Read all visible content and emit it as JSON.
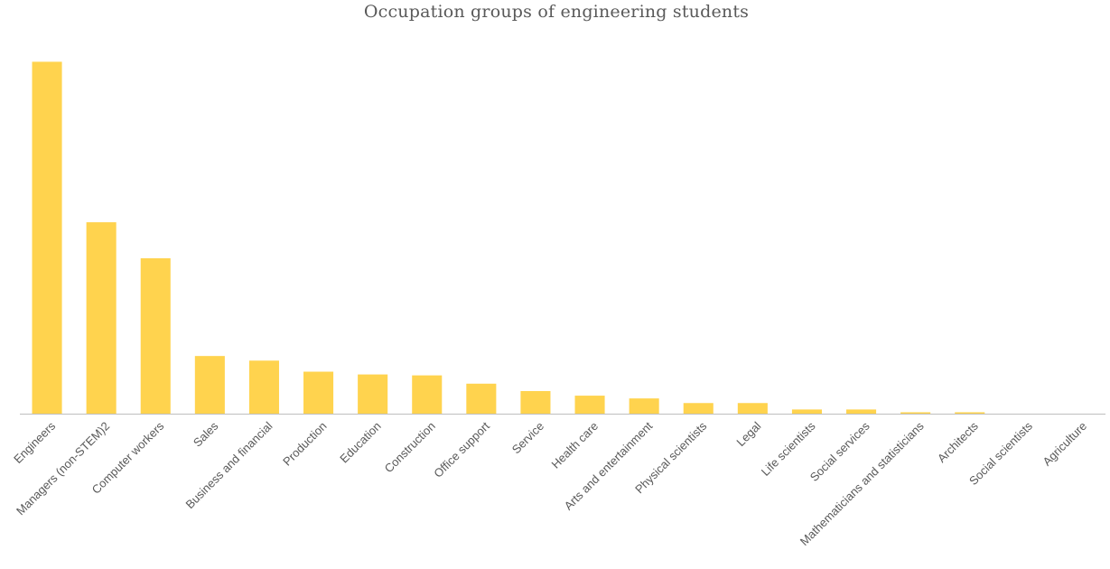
{
  "chart_data": {
    "type": "bar",
    "title": "Occupation groups of engineering students",
    "xlabel": "",
    "ylabel": "",
    "categories": [
      "Engineers",
      "Managers (non-STEM)2",
      "Computer workers",
      "Sales",
      "Business and financial",
      "Production",
      "Education",
      "Construction",
      "Office support",
      "Service",
      "Health care",
      "Arts and entertainment",
      "Physical scientists",
      "Legal",
      "Life scientists",
      "Social services",
      "Mathematicians and statisticians",
      "Architects",
      "Social scientists",
      "Agriculture"
    ],
    "values": [
      38.2,
      20.8,
      16.9,
      6.3,
      5.8,
      4.6,
      4.3,
      4.2,
      3.3,
      2.5,
      2.0,
      1.7,
      1.2,
      1.2,
      0.5,
      0.5,
      0.2,
      0.2,
      0.0,
      0.0
    ],
    "ylim": [
      0,
      40
    ],
    "grid": false,
    "legend": "none",
    "bar_color": "#FFD34E",
    "axis_color": "#BFBFBF",
    "text_color": "#595959"
  }
}
